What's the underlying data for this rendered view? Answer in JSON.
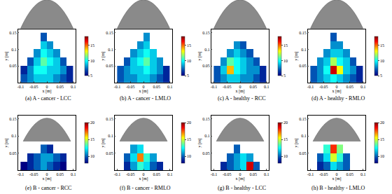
{
  "chart_data": [
    {
      "type": "heatmap",
      "title": "(a) A - cancer - LCC",
      "x_label": "x [m]",
      "y_label": "y [m]",
      "x": [
        -0.0875,
        -0.0625,
        -0.0375,
        -0.0125,
        0.0125,
        0.0375,
        0.0625,
        0.0875
      ],
      "y": [
        0.0125,
        0.0375,
        0.0625,
        0.0875,
        0.1125,
        0.1375
      ],
      "z": [
        [
          7,
          8,
          9,
          9,
          9,
          8,
          7,
          6
        ],
        [
          6,
          8,
          10,
          10,
          9,
          9,
          8,
          6
        ],
        [
          null,
          7,
          9,
          11,
          10,
          9,
          7,
          null
        ],
        [
          null,
          null,
          8,
          10,
          9,
          8,
          null,
          null
        ],
        [
          null,
          null,
          null,
          9,
          8,
          null,
          null,
          null
        ],
        [
          null,
          null,
          null,
          7,
          null,
          null,
          null,
          null
        ]
      ],
      "xlim": [
        -0.11,
        0.11
      ],
      "xticks": [
        -0.1,
        -0.05,
        0,
        0.05,
        0.1
      ],
      "ylim": [
        0,
        0.16
      ],
      "yticks": [
        0.05,
        0.1,
        0.15
      ],
      "zlim": [
        5,
        18
      ],
      "zticks": [
        5,
        10,
        15
      ]
    },
    {
      "type": "heatmap",
      "title": "(b) A - cancer - LMLO",
      "x_label": "x [m]",
      "y_label": "y [m]",
      "x": [
        -0.0875,
        -0.0625,
        -0.0375,
        -0.0125,
        0.0125,
        0.0375,
        0.0625,
        0.0875
      ],
      "y": [
        0.0125,
        0.0375,
        0.0625,
        0.0875,
        0.1125,
        0.1375
      ],
      "z": [
        [
          7,
          8,
          8,
          9,
          9,
          8,
          7,
          6
        ],
        [
          7,
          8,
          9,
          9,
          10,
          9,
          8,
          6
        ],
        [
          null,
          7,
          9,
          10,
          11,
          9,
          8,
          null
        ],
        [
          null,
          null,
          8,
          9,
          10,
          9,
          null,
          null
        ],
        [
          null,
          null,
          null,
          8,
          9,
          null,
          null,
          null
        ],
        [
          null,
          null,
          null,
          null,
          8,
          null,
          null,
          null
        ]
      ],
      "xlim": [
        -0.11,
        0.11
      ],
      "xticks": [
        -0.1,
        -0.05,
        0,
        0.05,
        0.1
      ],
      "ylim": [
        0,
        0.16
      ],
      "yticks": [
        0.05,
        0.1,
        0.15
      ],
      "zlim": [
        5,
        18
      ],
      "zticks": [
        5,
        10,
        15
      ]
    },
    {
      "type": "heatmap",
      "title": "(c) A - healthy - RCC",
      "x_label": "x [m]",
      "y_label": "y [m]",
      "x": [
        -0.0875,
        -0.0625,
        -0.0375,
        -0.0125,
        0.0125,
        0.0375,
        0.0625,
        0.0875
      ],
      "y": [
        0.0125,
        0.0375,
        0.0625,
        0.0875,
        0.1125,
        0.1375
      ],
      "z": [
        [
          7,
          8,
          9,
          9,
          8,
          8,
          7,
          6
        ],
        [
          7,
          9,
          14,
          10,
          9,
          8,
          8,
          6
        ],
        [
          null,
          8,
          11,
          10,
          9,
          8,
          7,
          null
        ],
        [
          null,
          null,
          8,
          9,
          8,
          7,
          null,
          null
        ],
        [
          null,
          null,
          null,
          8,
          7,
          null,
          null,
          null
        ],
        [
          null,
          null,
          null,
          null,
          null,
          null,
          null,
          null
        ]
      ],
      "xlim": [
        -0.11,
        0.11
      ],
      "xticks": [
        -0.1,
        -0.05,
        0,
        0.05,
        0.1
      ],
      "ylim": [
        0,
        0.16
      ],
      "yticks": [
        0.05,
        0.1,
        0.15
      ],
      "zlim": [
        5,
        18
      ],
      "zticks": [
        5,
        10,
        15
      ]
    },
    {
      "type": "heatmap",
      "title": "(d) A - healthy - RMLO",
      "x_label": "x [m]",
      "y_label": "y [m]",
      "x": [
        -0.0875,
        -0.0625,
        -0.0375,
        -0.0125,
        0.0125,
        0.0375,
        0.0625,
        0.0875
      ],
      "y": [
        0.0125,
        0.0375,
        0.0625,
        0.0875,
        0.1125,
        0.1375
      ],
      "z": [
        [
          7,
          8,
          9,
          10,
          9,
          8,
          7,
          6
        ],
        [
          7,
          8,
          10,
          17,
          13,
          9,
          8,
          6
        ],
        [
          null,
          8,
          9,
          12,
          10,
          9,
          7,
          null
        ],
        [
          null,
          null,
          8,
          9,
          9,
          8,
          null,
          null
        ],
        [
          null,
          null,
          null,
          8,
          8,
          null,
          null,
          null
        ],
        [
          null,
          null,
          null,
          7,
          null,
          null,
          null,
          null
        ]
      ],
      "xlim": [
        -0.11,
        0.11
      ],
      "xticks": [
        -0.1,
        -0.05,
        0,
        0.05,
        0.1
      ],
      "ylim": [
        0,
        0.16
      ],
      "yticks": [
        0.05,
        0.1,
        0.15
      ],
      "zlim": [
        5,
        18
      ],
      "zticks": [
        5,
        10,
        15
      ]
    },
    {
      "type": "heatmap",
      "title": "(e) B - cancer - RCC",
      "x_label": "x [m]",
      "y_label": "y [m]",
      "x": [
        -0.0875,
        -0.0625,
        -0.0375,
        -0.0125,
        0.0125,
        0.0375,
        0.0625,
        0.0875
      ],
      "y": [
        0.0125,
        0.0375,
        0.0625
      ],
      "z": [
        [
          8,
          9,
          10,
          11,
          10,
          9,
          8,
          null
        ],
        [
          null,
          9,
          10,
          11,
          11,
          10,
          9,
          null
        ],
        [
          null,
          null,
          null,
          10,
          9,
          null,
          null,
          null
        ]
      ],
      "xlim": [
        -0.11,
        0.11
      ],
      "xticks": [
        -0.1,
        -0.05,
        0,
        0.05,
        0.1
      ],
      "ylim": [
        0,
        0.16
      ],
      "yticks": [
        0.05,
        0.1,
        0.15
      ],
      "zlim": [
        8,
        20
      ],
      "zticks": [
        10,
        15,
        20
      ]
    },
    {
      "type": "heatmap",
      "title": "(f) B - cancer - RMLO",
      "x_label": "x [m]",
      "y_label": "y [m]",
      "x": [
        -0.0875,
        -0.0625,
        -0.0375,
        -0.0125,
        0.0125,
        0.0375,
        0.0625,
        0.0875
      ],
      "y": [
        0.0125,
        0.0375,
        0.0625
      ],
      "z": [
        [
          null,
          9,
          11,
          13,
          12,
          10,
          9,
          null
        ],
        [
          null,
          10,
          12,
          17,
          13,
          11,
          null,
          null
        ],
        [
          null,
          null,
          11,
          12,
          null,
          null,
          null,
          null
        ]
      ],
      "xlim": [
        -0.11,
        0.11
      ],
      "xticks": [
        -0.1,
        -0.05,
        0,
        0.05,
        0.1
      ],
      "ylim": [
        0,
        0.16
      ],
      "yticks": [
        0.05,
        0.1,
        0.15
      ],
      "zlim": [
        8,
        20
      ],
      "zticks": [
        10,
        15,
        20
      ]
    },
    {
      "type": "heatmap",
      "title": "(g) B - healthy - LCC",
      "x_label": "x [m]",
      "y_label": "y [m]",
      "x": [
        -0.0875,
        -0.0625,
        -0.0375,
        -0.0125,
        0.0125,
        0.0375,
        0.0625,
        0.0875
      ],
      "y": [
        0.0125,
        0.0375,
        0.0625
      ],
      "z": [
        [
          null,
          9,
          10,
          11,
          12,
          19,
          10,
          null
        ],
        [
          null,
          null,
          10,
          11,
          12,
          11,
          null,
          null
        ],
        [
          null,
          null,
          null,
          10,
          null,
          null,
          null,
          null
        ]
      ],
      "xlim": [
        -0.11,
        0.11
      ],
      "xticks": [
        -0.1,
        -0.05,
        0,
        0.05,
        0.1
      ],
      "ylim": [
        0,
        0.16
      ],
      "yticks": [
        0.05,
        0.1,
        0.15
      ],
      "zlim": [
        8,
        20
      ],
      "zticks": [
        10,
        15,
        20
      ]
    },
    {
      "type": "heatmap",
      "title": "(h) B - healthy - LMLO",
      "x_label": "x [m]",
      "y_label": "y [m]",
      "x": [
        -0.0875,
        -0.0625,
        -0.0375,
        -0.0125,
        0.0125,
        0.0375,
        0.0625,
        0.0875
      ],
      "y": [
        0.0125,
        0.0375,
        0.0625
      ],
      "z": [
        [
          null,
          9,
          10,
          12,
          11,
          10,
          null,
          null
        ],
        [
          null,
          10,
          12,
          15,
          13,
          10,
          null,
          null
        ],
        [
          null,
          null,
          13,
          18,
          14,
          null,
          null,
          null
        ]
      ],
      "xlim": [
        -0.11,
        0.11
      ],
      "xticks": [
        -0.1,
        -0.05,
        0,
        0.05,
        0.1
      ],
      "ylim": [
        0,
        0.16
      ],
      "yticks": [
        0.05,
        0.1,
        0.15
      ],
      "zlim": [
        8,
        20
      ],
      "zticks": [
        10,
        15,
        20
      ]
    }
  ]
}
